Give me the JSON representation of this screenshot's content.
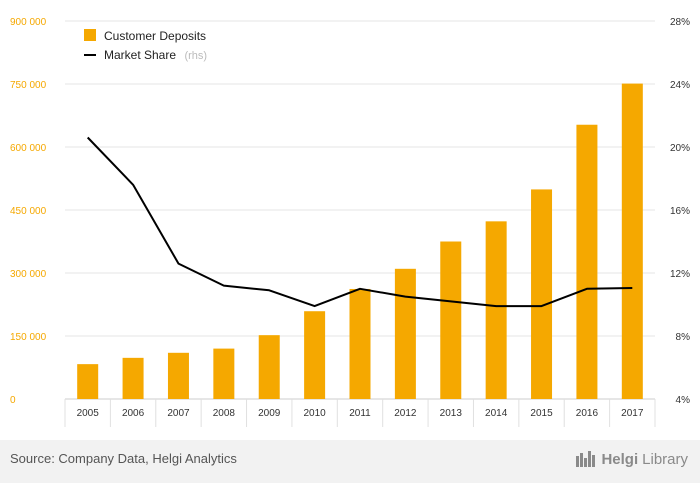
{
  "chart_data": {
    "type": "bar+line",
    "categories": [
      "2005",
      "2006",
      "2007",
      "2008",
      "2009",
      "2010",
      "2011",
      "2012",
      "2013",
      "2014",
      "2015",
      "2016",
      "2017"
    ],
    "series": [
      {
        "name": "Customer Deposits",
        "type": "bar",
        "axis": "left",
        "color": "#f5a800",
        "values": [
          83000,
          98000,
          110000,
          120000,
          152000,
          209000,
          262000,
          310000,
          375000,
          423000,
          499000,
          653000,
          751000
        ]
      },
      {
        "name": "Market Share",
        "name_suffix": "(rhs)",
        "type": "line",
        "axis": "right",
        "color": "#000000",
        "values": [
          20.6,
          17.6,
          12.6,
          11.2,
          10.9,
          9.9,
          11.0,
          10.5,
          10.2,
          9.9,
          9.9,
          11.0,
          11.05
        ]
      }
    ],
    "y_left": {
      "ylim": [
        0,
        900000
      ],
      "ticks": [
        "0",
        "150 000",
        "300 000",
        "450 000",
        "600 000",
        "750 000",
        "900 000"
      ]
    },
    "y_right": {
      "ylim": [
        4,
        28
      ],
      "ticks": [
        "4%",
        "8%",
        "12%",
        "16%",
        "20%",
        "24%",
        "28%"
      ]
    },
    "grid": true,
    "legend_position": "top-left"
  },
  "footer": {
    "source": "Source: Company Data, Helgi Analytics",
    "brand_part1": "Helgi",
    "brand_part2": "Library"
  }
}
